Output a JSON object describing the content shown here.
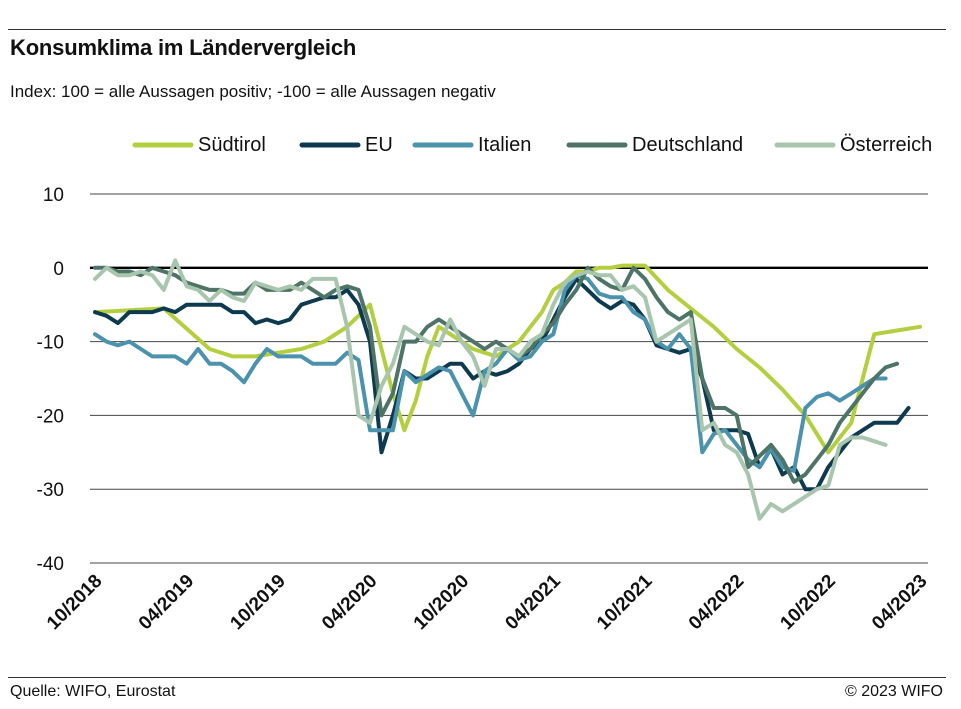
{
  "title": "Konsumklima im Ländervergleich",
  "subtitle": "Index: 100 = alle Aussagen positiv; -100 =  alle Aussagen negativ",
  "footer": {
    "source": "Quelle: WIFO, Eurostat",
    "copyright": "© 2023 WIFO"
  },
  "chart_data": {
    "type": "line",
    "ylim": [
      -40,
      10
    ],
    "yticks": [
      10,
      0,
      -10,
      -20,
      -30,
      -40
    ],
    "ytick_labels": [
      "10",
      "0",
      "-10",
      "-20",
      "-30",
      "-40"
    ],
    "xticks": [
      "10/2018",
      "04/2019",
      "10/2019",
      "04/2020",
      "10/2020",
      "04/2021",
      "10/2021",
      "04/2022",
      "10/2022",
      "04/2023"
    ],
    "grid": true,
    "legend": "top",
    "x_start": "2018-10",
    "series": [
      {
        "name": "Südtirol",
        "color": "#b3cf3f",
        "points": [
          [
            0,
            -6
          ],
          [
            6,
            -5.5
          ],
          [
            10,
            -11
          ],
          [
            12,
            -12
          ],
          [
            14,
            -12
          ],
          [
            16,
            -11.5
          ],
          [
            18,
            -11
          ],
          [
            20,
            -10
          ],
          [
            22,
            -8
          ],
          [
            24,
            -5
          ],
          [
            26,
            -17
          ],
          [
            27,
            -22
          ],
          [
            28,
            -18
          ],
          [
            29,
            -12
          ],
          [
            30,
            -8
          ],
          [
            31,
            -9
          ],
          [
            32,
            -10
          ],
          [
            33,
            -11
          ],
          [
            34,
            -11.5
          ],
          [
            35,
            -12
          ],
          [
            36,
            -11
          ],
          [
            37,
            -10
          ],
          [
            38,
            -8
          ],
          [
            39,
            -6
          ],
          [
            40,
            -3
          ],
          [
            41,
            -2
          ],
          [
            42,
            -0.5
          ],
          [
            43,
            -0.5
          ],
          [
            44,
            0
          ],
          [
            45,
            0
          ],
          [
            46,
            0.3
          ],
          [
            47,
            0.3
          ],
          [
            48,
            0.3
          ],
          [
            50,
            -3
          ],
          [
            52,
            -5.5
          ],
          [
            54,
            -8
          ],
          [
            56,
            -11
          ],
          [
            58,
            -13.5
          ],
          [
            60,
            -16.5
          ],
          [
            62,
            -20
          ],
          [
            64,
            -25
          ],
          [
            66,
            -21
          ],
          [
            67,
            -15
          ],
          [
            68,
            -9
          ],
          [
            70,
            -8.5
          ],
          [
            72,
            -8
          ]
        ]
      },
      {
        "name": "EU",
        "color": "#0e3a4f",
        "points": [
          [
            0,
            -6
          ],
          [
            1,
            -6.5
          ],
          [
            2,
            -7.5
          ],
          [
            3,
            -6
          ],
          [
            4,
            -6
          ],
          [
            5,
            -6
          ],
          [
            6,
            -5.5
          ],
          [
            7,
            -6
          ],
          [
            8,
            -5
          ],
          [
            9,
            -5
          ],
          [
            10,
            -5
          ],
          [
            11,
            -5
          ],
          [
            12,
            -6
          ],
          [
            13,
            -6
          ],
          [
            14,
            -7.5
          ],
          [
            15,
            -7
          ],
          [
            16,
            -7.5
          ],
          [
            17,
            -7
          ],
          [
            18,
            -5
          ],
          [
            19,
            -4.5
          ],
          [
            20,
            -4
          ],
          [
            21,
            -4
          ],
          [
            22,
            -3
          ],
          [
            23,
            -5
          ],
          [
            24,
            -10
          ],
          [
            25,
            -25
          ],
          [
            26,
            -20
          ],
          [
            27,
            -14
          ],
          [
            28,
            -15
          ],
          [
            29,
            -15
          ],
          [
            30,
            -14
          ],
          [
            31,
            -13
          ],
          [
            32,
            -13
          ],
          [
            33,
            -15
          ],
          [
            34,
            -14
          ],
          [
            35,
            -14.5
          ],
          [
            36,
            -14
          ],
          [
            37,
            -13
          ],
          [
            38,
            -11
          ],
          [
            39,
            -10
          ],
          [
            40,
            -7
          ],
          [
            41,
            -4
          ],
          [
            42,
            -1.5
          ],
          [
            43,
            -3
          ],
          [
            44,
            -4.5
          ],
          [
            45,
            -5.5
          ],
          [
            46,
            -4.5
          ],
          [
            47,
            -5
          ],
          [
            48,
            -7
          ],
          [
            49,
            -10.5
          ],
          [
            50,
            -11
          ],
          [
            51,
            -11.5
          ],
          [
            52,
            -11
          ],
          [
            53,
            -15
          ],
          [
            54,
            -22
          ],
          [
            55,
            -22
          ],
          [
            56,
            -22
          ],
          [
            57,
            -22.5
          ],
          [
            58,
            -27
          ],
          [
            59,
            -24.5
          ],
          [
            60,
            -28
          ],
          [
            61,
            -27
          ],
          [
            62,
            -30
          ],
          [
            63,
            -30
          ],
          [
            64,
            -27
          ],
          [
            65,
            -25
          ],
          [
            66,
            -23
          ],
          [
            67,
            -22
          ],
          [
            68,
            -21
          ],
          [
            69,
            -21
          ],
          [
            70,
            -21
          ],
          [
            71,
            -19
          ]
        ]
      },
      {
        "name": "Italien",
        "color": "#4b92ad",
        "points": [
          [
            0,
            -9
          ],
          [
            1,
            -10
          ],
          [
            2,
            -10.5
          ],
          [
            3,
            -10
          ],
          [
            4,
            -11
          ],
          [
            5,
            -12
          ],
          [
            6,
            -12
          ],
          [
            7,
            -12
          ],
          [
            8,
            -13
          ],
          [
            9,
            -11
          ],
          [
            10,
            -13
          ],
          [
            11,
            -13
          ],
          [
            12,
            -14
          ],
          [
            13,
            -15.5
          ],
          [
            14,
            -13
          ],
          [
            15,
            -11
          ],
          [
            16,
            -12
          ],
          [
            17,
            -12
          ],
          [
            18,
            -12
          ],
          [
            19,
            -13
          ],
          [
            20,
            -13
          ],
          [
            21,
            -13
          ],
          [
            22,
            -11.5
          ],
          [
            23,
            -12.5
          ],
          [
            24,
            -22
          ],
          [
            25,
            -22
          ],
          [
            26,
            -22
          ],
          [
            27,
            -14
          ],
          [
            28,
            -15.5
          ],
          [
            29,
            -14.5
          ],
          [
            30,
            -13.5
          ],
          [
            31,
            -14
          ],
          [
            32,
            -17
          ],
          [
            33,
            -20
          ],
          [
            34,
            -14
          ],
          [
            35,
            -13
          ],
          [
            36,
            -11
          ],
          [
            37,
            -12.5
          ],
          [
            38,
            -12
          ],
          [
            39,
            -10
          ],
          [
            40,
            -9
          ],
          [
            41,
            -3
          ],
          [
            42,
            -1
          ],
          [
            43,
            -1.5
          ],
          [
            44,
            -3.5
          ],
          [
            45,
            -4
          ],
          [
            46,
            -4
          ],
          [
            47,
            -6
          ],
          [
            48,
            -7
          ],
          [
            49,
            -10
          ],
          [
            50,
            -11
          ],
          [
            51,
            -9
          ],
          [
            52,
            -11
          ],
          [
            53,
            -25
          ],
          [
            54,
            -22.5
          ],
          [
            55,
            -22
          ],
          [
            56,
            -24
          ],
          [
            57,
            -26
          ],
          [
            58,
            -27
          ],
          [
            59,
            -24.5
          ],
          [
            60,
            -27
          ],
          [
            61,
            -27.5
          ],
          [
            62,
            -19
          ],
          [
            63,
            -17.5
          ],
          [
            64,
            -17
          ],
          [
            65,
            -18
          ],
          [
            66,
            -17
          ],
          [
            67,
            -16
          ],
          [
            68,
            -15
          ],
          [
            69,
            -15
          ]
        ]
      },
      {
        "name": "Deutschland",
        "color": "#4d7466",
        "points": [
          [
            0,
            0
          ],
          [
            1,
            0
          ],
          [
            2,
            -0.5
          ],
          [
            3,
            -0.5
          ],
          [
            4,
            -1
          ],
          [
            5,
            0
          ],
          [
            6,
            -0.5
          ],
          [
            7,
            -1
          ],
          [
            8,
            -2
          ],
          [
            9,
            -2.5
          ],
          [
            10,
            -3
          ],
          [
            11,
            -3
          ],
          [
            12,
            -3.5
          ],
          [
            13,
            -3.5
          ],
          [
            14,
            -2
          ],
          [
            15,
            -3
          ],
          [
            16,
            -3
          ],
          [
            17,
            -3
          ],
          [
            18,
            -2
          ],
          [
            19,
            -3
          ],
          [
            20,
            -4
          ],
          [
            21,
            -3
          ],
          [
            22,
            -2.5
          ],
          [
            23,
            -3
          ],
          [
            24,
            -8
          ],
          [
            25,
            -20
          ],
          [
            26,
            -17
          ],
          [
            27,
            -10
          ],
          [
            28,
            -10
          ],
          [
            29,
            -8
          ],
          [
            30,
            -7
          ],
          [
            31,
            -8
          ],
          [
            32,
            -9
          ],
          [
            33,
            -10
          ],
          [
            34,
            -11
          ],
          [
            35,
            -10
          ],
          [
            36,
            -11
          ],
          [
            37,
            -12
          ],
          [
            38,
            -11
          ],
          [
            39,
            -9
          ],
          [
            40,
            -7.5
          ],
          [
            41,
            -5
          ],
          [
            42,
            -3
          ],
          [
            43,
            0
          ],
          [
            44,
            -1.5
          ],
          [
            45,
            -2.5
          ],
          [
            46,
            -3
          ],
          [
            47,
            0
          ],
          [
            48,
            -1.5
          ],
          [
            49,
            -4
          ],
          [
            50,
            -6
          ],
          [
            51,
            -7
          ],
          [
            52,
            -6
          ],
          [
            53,
            -15
          ],
          [
            54,
            -19
          ],
          [
            55,
            -19
          ],
          [
            56,
            -20
          ],
          [
            57,
            -27
          ],
          [
            58,
            -25.5
          ],
          [
            59,
            -24
          ],
          [
            60,
            -26
          ],
          [
            61,
            -29
          ],
          [
            62,
            -28
          ],
          [
            63,
            -26
          ],
          [
            64,
            -24
          ],
          [
            65,
            -21
          ],
          [
            66,
            -19
          ],
          [
            67,
            -17
          ],
          [
            68,
            -15
          ],
          [
            69,
            -13.5
          ],
          [
            70,
            -13
          ]
        ]
      },
      {
        "name": "Österreich",
        "color": "#a8c5ad",
        "points": [
          [
            0,
            -1.5
          ],
          [
            1,
            0
          ],
          [
            2,
            -1
          ],
          [
            3,
            -1
          ],
          [
            4,
            -0.5
          ],
          [
            5,
            -1
          ],
          [
            6,
            -3
          ],
          [
            7,
            1
          ],
          [
            8,
            -2.5
          ],
          [
            9,
            -3
          ],
          [
            10,
            -4.5
          ],
          [
            11,
            -3
          ],
          [
            12,
            -4
          ],
          [
            13,
            -4.5
          ],
          [
            14,
            -2
          ],
          [
            15,
            -2.5
          ],
          [
            16,
            -3
          ],
          [
            17,
            -2.5
          ],
          [
            18,
            -3
          ],
          [
            19,
            -1.5
          ],
          [
            20,
            -1.5
          ],
          [
            21,
            -1.5
          ],
          [
            22,
            -8
          ],
          [
            23,
            -20
          ],
          [
            24,
            -21
          ],
          [
            25,
            -16
          ],
          [
            26,
            -13
          ],
          [
            27,
            -8
          ],
          [
            28,
            -9
          ],
          [
            29,
            -10
          ],
          [
            30,
            -10.5
          ],
          [
            31,
            -7
          ],
          [
            32,
            -10
          ],
          [
            33,
            -12
          ],
          [
            34,
            -16
          ],
          [
            35,
            -11
          ],
          [
            36,
            -11
          ],
          [
            37,
            -12
          ],
          [
            38,
            -10
          ],
          [
            39,
            -9
          ],
          [
            40,
            -5
          ],
          [
            41,
            -2
          ],
          [
            42,
            -1
          ],
          [
            43,
            -0.5
          ],
          [
            44,
            -1
          ],
          [
            45,
            -1
          ],
          [
            46,
            -3
          ],
          [
            47,
            -2.5
          ],
          [
            48,
            -4
          ],
          [
            49,
            -10
          ],
          [
            50,
            -9
          ],
          [
            51,
            -8
          ],
          [
            52,
            -7
          ],
          [
            53,
            -22
          ],
          [
            54,
            -21
          ],
          [
            55,
            -24
          ],
          [
            56,
            -25
          ],
          [
            57,
            -28
          ],
          [
            58,
            -34
          ],
          [
            59,
            -32
          ],
          [
            60,
            -33
          ],
          [
            61,
            -32
          ],
          [
            62,
            -31
          ],
          [
            63,
            -30
          ],
          [
            64,
            -29.5
          ],
          [
            65,
            -24
          ],
          [
            66,
            -23
          ],
          [
            67,
            -23
          ],
          [
            68,
            -23.5
          ],
          [
            69,
            -24
          ]
        ]
      }
    ]
  }
}
